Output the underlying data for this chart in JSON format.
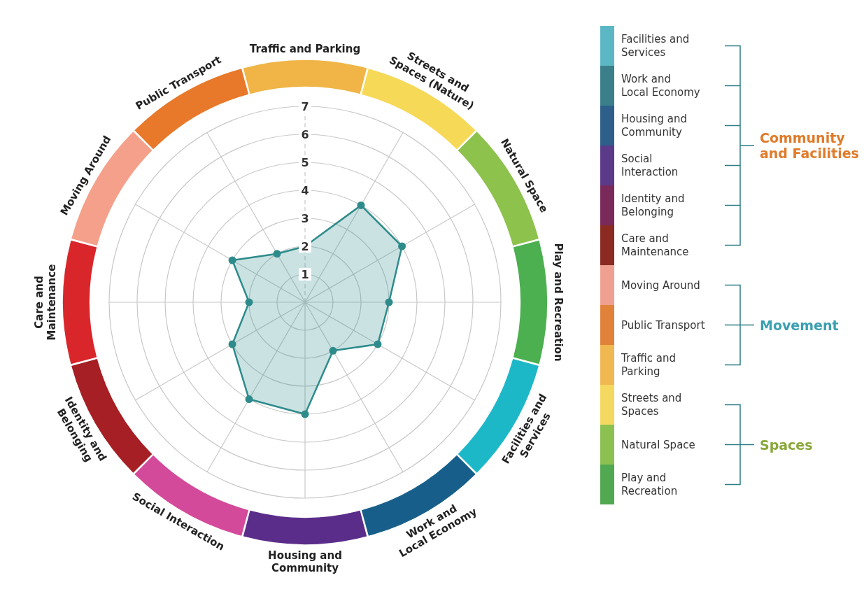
{
  "chart_data": [
    {
      "type": "radar",
      "categories": [
        "Traffic and Parking",
        "Streets and Spaces (Nature)",
        "Natural Space",
        "Play and Recreation",
        "Facilities and Services",
        "Work and Local Economy",
        "Housing and Community",
        "Social Interaction",
        "Identity and Belonging",
        "Care and Maintenance",
        "Moving Around",
        "Public Transport"
      ],
      "colors": [
        "#f0b546",
        "#f7d958",
        "#8dc24d",
        "#4caf50",
        "#1db8c8",
        "#175f8a",
        "#5b2d8a",
        "#d44a9a",
        "#a51f24",
        "#d9262a",
        "#f4a08a",
        "#e8792a"
      ],
      "series": [
        {
          "color": "#2e8b8b",
          "values": [
            2,
            4,
            4,
            3,
            3,
            2,
            4,
            4,
            3,
            2,
            3,
            2
          ]
        }
      ],
      "ylim": [
        0,
        7
      ],
      "yticks": [
        1,
        2,
        3,
        4,
        5,
        6,
        7
      ],
      "grid": true,
      "marker": "circle"
    },
    {
      "type": "other",
      "categories": [
        "Facilities and Services",
        "Work and Local Economy",
        "Housing and Community",
        "Social Interaction",
        "Identity and Belonging",
        "Care and Maintenance",
        "Moving Around",
        "Public Transport",
        "Traffic and Parking",
        "Streets and Spaces",
        "Natural Space",
        "Play and Recreation"
      ],
      "colors": [
        "#5bb7c4",
        "#3a7f8a",
        "#2d5f8a",
        "#5b3a8a",
        "#7a2a5a",
        "#8a2a20",
        "#f0a090",
        "#e0823a",
        "#f0b850",
        "#f5d860",
        "#8cc050",
        "#50a850"
      ],
      "annotations": [
        "Community and Facilities",
        "Movement",
        "Spaces"
      ]
    }
  ]
}
